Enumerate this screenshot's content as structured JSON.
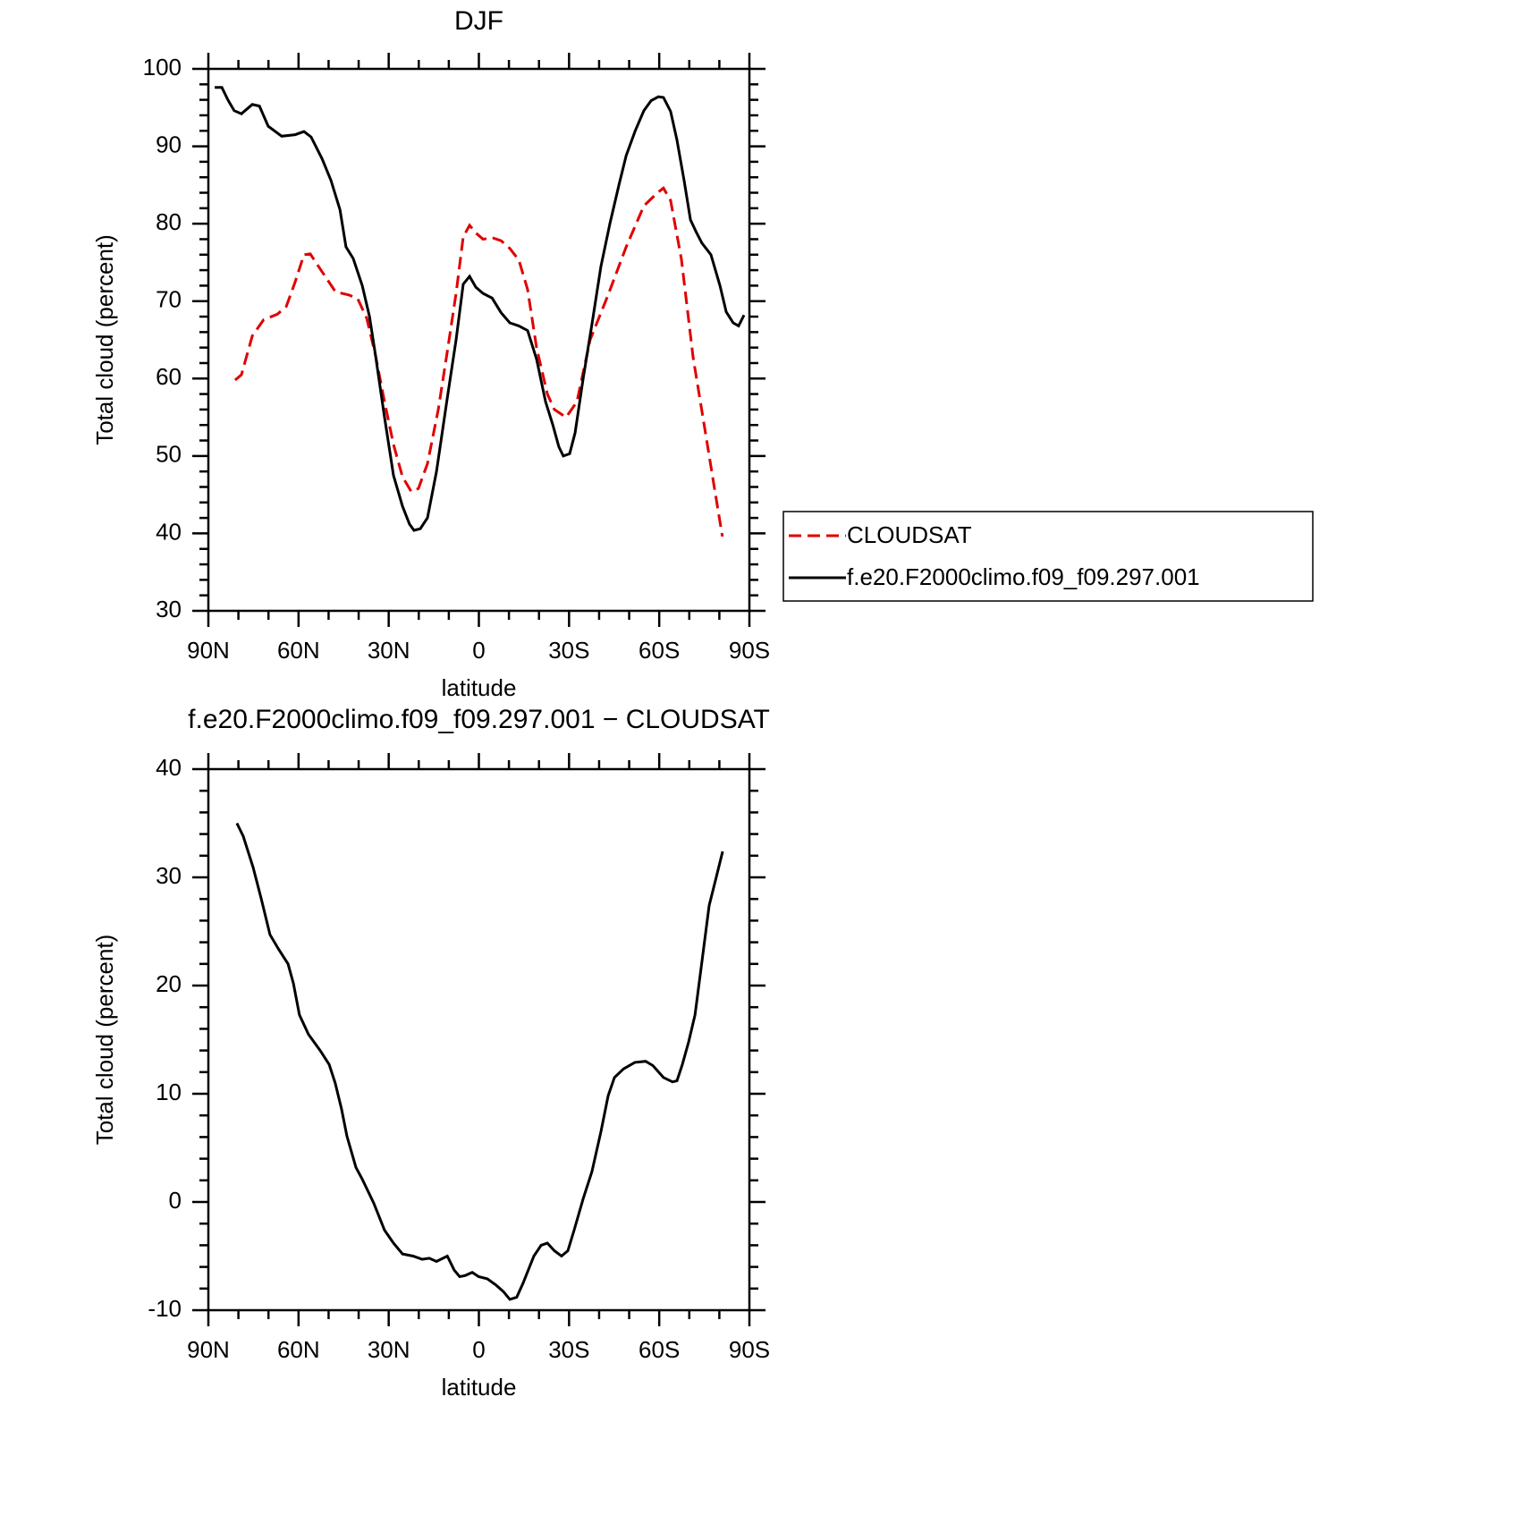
{
  "chart_data": [
    {
      "type": "line",
      "title": "DJF",
      "xlabel": "latitude",
      "ylabel": "Total cloud (percent)",
      "xlim": [
        90,
        -90
      ],
      "xticks": [
        {
          "value": 90,
          "label": "90N"
        },
        {
          "value": 60,
          "label": "60N"
        },
        {
          "value": 30,
          "label": "30N"
        },
        0,
        {
          "value": -30,
          "label": "30S"
        },
        {
          "value": -60,
          "label": "60S"
        },
        {
          "value": -90,
          "label": "90S"
        }
      ],
      "ylim": [
        30,
        100
      ],
      "yticks": [
        30,
        40,
        50,
        60,
        70,
        80,
        90,
        100
      ],
      "legend": "outside right",
      "series": [
        {
          "name": "CLOUDSAT",
          "color": "#e00000",
          "dash": "dashed",
          "x": [
            81.1,
            79,
            75.4,
            71.6,
            67.1,
            64.1,
            61.1,
            58.2,
            56.1,
            52.2,
            47.7,
            43.3,
            40.3,
            37.3,
            34.4,
            31.4,
            28.4,
            25.4,
            22.5,
            20.1,
            17.1,
            13.5,
            10.5,
            7.6,
            5.2,
            3.1,
            1,
            -1.4,
            -4.4,
            -7.4,
            -10.3,
            -13.3,
            -16.2,
            -19.2,
            -22.8,
            -25.1,
            -29,
            -32.6,
            -37,
            -43,
            -49,
            -54.9,
            -59.4,
            -61.4,
            -63.8,
            -67.4,
            -71.3,
            -74.2,
            -78.1,
            -81
          ],
          "values": [
            59.8,
            60.5,
            65.5,
            67.6,
            68.3,
            69.3,
            72.5,
            76,
            76.1,
            73.8,
            71.2,
            70.8,
            70.3,
            67.8,
            63,
            57,
            51.5,
            47.3,
            45.4,
            45.8,
            49,
            56,
            63.5,
            71,
            78.3,
            79.8,
            78.8,
            78,
            78.2,
            77.8,
            76.8,
            75.3,
            71.5,
            64,
            58,
            56,
            55,
            57,
            65,
            70.8,
            77,
            82.3,
            84,
            84.6,
            83,
            75.4,
            62.7,
            55.8,
            46.5,
            39.6
          ]
        },
        {
          "name": "f.e20.F2000climo.f09_f09.297.001",
          "color": "#000000",
          "dash": "solid",
          "x": [
            87.9,
            85.5,
            83.5,
            81.4,
            79,
            75.4,
            73,
            70.1,
            65.6,
            61.1,
            58.2,
            55.8,
            52.2,
            49.2,
            46.2,
            44.2,
            41.8,
            38.8,
            36.4,
            34.4,
            31.4,
            28.4,
            25.4,
            23.1,
            21.6,
            19.5,
            17.1,
            14.1,
            10.5,
            7.6,
            5.2,
            3.1,
            1,
            -1.4,
            -4.4,
            -7.4,
            -10.3,
            -13.3,
            -16.2,
            -19.2,
            -22.2,
            -24.6,
            -26.6,
            -28.1,
            -30.2,
            -32,
            -34.7,
            -37.6,
            -40.6,
            -43.6,
            -46.6,
            -49,
            -52,
            -54.9,
            -57.3,
            -59.7,
            -61.4,
            -63.8,
            -65.9,
            -68.3,
            -70.4,
            -72.2,
            -74.2,
            -77.2,
            -80.2,
            -82.3,
            -84.6,
            -86.4,
            -88.2
          ],
          "values": [
            97.6,
            97.6,
            96,
            94.6,
            94.2,
            95.4,
            95.2,
            92.6,
            91.3,
            91.5,
            91.9,
            91.2,
            88.4,
            85.6,
            81.8,
            77,
            75.5,
            72,
            68,
            63,
            55,
            47.5,
            43.5,
            41.2,
            40.4,
            40.6,
            42,
            48,
            57.5,
            65,
            72.2,
            73.2,
            71.8,
            71,
            70.4,
            68.5,
            67.2,
            66.8,
            66.2,
            62.5,
            57,
            54,
            51.2,
            50,
            50.3,
            53,
            60,
            67,
            74.5,
            80,
            85,
            88.8,
            92,
            94.6,
            95.9,
            96.4,
            96.3,
            94.5,
            90.8,
            85.5,
            80.5,
            79,
            77.5,
            76,
            72,
            68.6,
            67.2,
            66.8,
            68.2
          ]
        }
      ]
    },
    {
      "type": "line",
      "title": "f.e20.F2000climo.f09_f09.297.001 − CLOUDSAT",
      "xlabel": "latitude",
      "ylabel": "Total cloud (percent)",
      "xlim": [
        90,
        -90
      ],
      "xticks": [
        {
          "value": 90,
          "label": "90N"
        },
        {
          "value": 60,
          "label": "60N"
        },
        {
          "value": 30,
          "label": "30N"
        },
        0,
        {
          "value": -30,
          "label": "30S"
        },
        {
          "value": -60,
          "label": "60S"
        },
        {
          "value": -90,
          "label": "90S"
        }
      ],
      "ylim": [
        -10,
        40
      ],
      "yticks": [
        -10,
        0,
        10,
        20,
        30,
        40
      ],
      "color": "#000000",
      "x": [
        80.5,
        78.4,
        75.1,
        72.4,
        69.5,
        66.5,
        63.5,
        61.7,
        59.7,
        56.7,
        52.8,
        49.8,
        47.8,
        45.7,
        43.9,
        40.9,
        38.8,
        36.7,
        35,
        31.4,
        28.4,
        25.4,
        21.9,
        18.9,
        16.5,
        14.1,
        10.5,
        8.2,
        6.4,
        4.6,
        2.2,
        0.1,
        -2.8,
        -5.8,
        -8.2,
        -10.3,
        -12.6,
        -14.7,
        -18.3,
        -20.7,
        -22.8,
        -25.1,
        -27.5,
        -29.6,
        -31.7,
        -34.7,
        -37.6,
        -40.6,
        -43,
        -45.1,
        -48.1,
        -51.9,
        -55.5,
        -57.9,
        -61.4,
        -64.4,
        -65.9,
        -67.7,
        -69.8,
        -71.9,
        -74.2,
        -76.6,
        -78.7,
        -81.1
      ],
      "values": [
        35,
        33.8,
        30.9,
        28,
        24.7,
        23.3,
        22,
        20.2,
        17.3,
        15.5,
        14,
        12.7,
        11,
        8.6,
        6.1,
        3.2,
        2.1,
        0.9,
        -0.1,
        -2.6,
        -3.8,
        -4.8,
        -5,
        -5.3,
        -5.2,
        -5.5,
        -5,
        -6.3,
        -6.9,
        -6.8,
        -6.5,
        -6.9,
        -7.1,
        -7.7,
        -8.3,
        -9,
        -8.8,
        -7.5,
        -5,
        -4,
        -3.8,
        -4.5,
        -5,
        -4.5,
        -2.6,
        0.3,
        2.8,
        6.5,
        9.8,
        11.5,
        12.3,
        12.9,
        13,
        12.6,
        11.5,
        11.1,
        11.2,
        12.7,
        14.8,
        17.3,
        22.2,
        27.4,
        29.7,
        32.4
      ]
    }
  ]
}
